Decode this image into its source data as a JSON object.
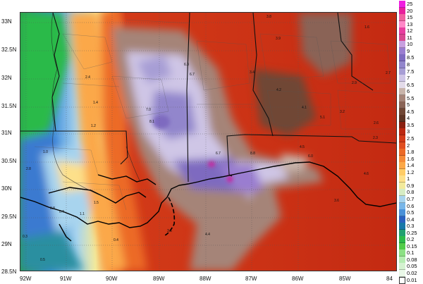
{
  "map": {
    "lat_labels": [
      "33N",
      "32.5N",
      "32N",
      "31.5N",
      "31N",
      "30.5N",
      "30N",
      "29.5N",
      "29N",
      "28.5N"
    ],
    "lon_labels": [
      "92W",
      "91W",
      "90W",
      "89W",
      "88W",
      "87W",
      "86W",
      "85W",
      "84"
    ],
    "value_labels": [
      "3.8",
      "3.9",
      "1.6",
      "2.4",
      "6.7",
      "6.3",
      "7.0",
      "8.1",
      "1.2",
      "1.4",
      "1.0",
      "0.8",
      "0.7",
      "1.1",
      "1.5",
      "3.5",
      "4.4",
      "6.7",
      "8.8",
      "4.5",
      "6.0",
      "3.4",
      "4.2",
      "4.1",
      "5.1",
      "3.2",
      "2.9",
      "2.7",
      "2.6",
      "2.3",
      "0.4",
      "0.5",
      "0.3",
      "2.8",
      "3.6",
      "4.6"
    ]
  },
  "legend": {
    "ticks": [
      "25",
      "20",
      "15",
      "13",
      "12",
      "11",
      "10",
      "9",
      "8.5",
      "8",
      "7.5",
      "7",
      "6.5",
      "6",
      "5.5",
      "5",
      "4.5",
      "4",
      "3.5",
      "3",
      "2.5",
      "2",
      "1.8",
      "1.6",
      "1.4",
      "1.2",
      "1",
      "0.9",
      "0.8",
      "0.7",
      "0.6",
      "0.5",
      "0.4",
      "0.3",
      "0.25",
      "0.2",
      "0.15",
      "0.1",
      "0.08",
      "0.05",
      "0.02",
      "0.01"
    ],
    "colors": [
      "#f01de0",
      "#e8209c",
      "#f060a0",
      "#ff88c8",
      "#e83fa0",
      "#d84890",
      "#c8a0e0",
      "#9a7dd0",
      "#7e6ac0",
      "#9286cc",
      "#a79ed5",
      "#cfc6e6",
      "#e3dbe9",
      "#c8b4aa",
      "#a58478",
      "#8a6456",
      "#704634",
      "#5c3424",
      "#8a2010",
      "#bc2810",
      "#d23a18",
      "#e04e20",
      "#ec6a28",
      "#f58a38",
      "#fba848",
      "#ffcc66",
      "#fde08a",
      "#f2ea9c",
      "#d6ecc4",
      "#a8d4ee",
      "#78b6e8",
      "#4a90d8",
      "#2a60c0",
      "#1878a8",
      "#20a070",
      "#2cba4a",
      "#52cc4a",
      "#8ce084",
      "#b6ecb2",
      "#d4f2d0",
      "#eaf8e8",
      "#ffffff"
    ]
  }
}
